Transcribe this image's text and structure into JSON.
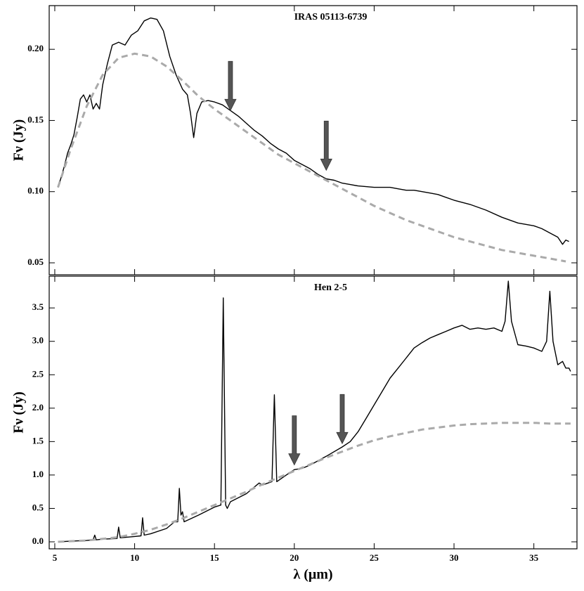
{
  "chart_data": [
    {
      "type": "line",
      "title": "IRAS 05113-6739",
      "ylabel": "Fν (Jy)",
      "xlim": [
        4.65,
        37.7
      ],
      "xticks": [
        5,
        10,
        15,
        20,
        25,
        30,
        35
      ],
      "ylim": [
        0.0416,
        0.2307
      ],
      "yticks": [
        {
          "value": 0.05,
          "label": "0.05"
        },
        {
          "value": 0.1,
          "label": "0.10"
        },
        {
          "value": 0.15,
          "label": "0.15"
        },
        {
          "value": 0.2,
          "label": "0.20"
        }
      ],
      "series": [
        {
          "color": "#000000",
          "dashed": false,
          "x": [
            5.2,
            5.4,
            5.6,
            5.8,
            6.0,
            6.2,
            6.4,
            6.6,
            6.8,
            7.0,
            7.2,
            7.4,
            7.6,
            7.8,
            8.0,
            8.3,
            8.6,
            9.0,
            9.4,
            9.8,
            10.2,
            10.6,
            11.0,
            11.4,
            11.8,
            12.2,
            12.6,
            13.0,
            13.3,
            13.5,
            13.7,
            13.9,
            14.2,
            14.6,
            15.0,
            15.5,
            16.0,
            16.5,
            17.0,
            17.5,
            18.0,
            18.5,
            19.0,
            19.5,
            20.0,
            20.5,
            21.0,
            21.5,
            22.0,
            22.5,
            23.0,
            23.5,
            24.0,
            25.0,
            26.0,
            26.5,
            27.0,
            27.5,
            28.0,
            28.5,
            29.0,
            30.0,
            31.0,
            32.0,
            33.0,
            34.0,
            35.0,
            35.5,
            36.0,
            36.5,
            36.8,
            37.0,
            37.2
          ],
          "values": [
            0.103,
            0.11,
            0.118,
            0.127,
            0.133,
            0.14,
            0.152,
            0.165,
            0.168,
            0.163,
            0.168,
            0.158,
            0.162,
            0.158,
            0.175,
            0.19,
            0.203,
            0.205,
            0.203,
            0.21,
            0.213,
            0.22,
            0.222,
            0.221,
            0.213,
            0.195,
            0.182,
            0.172,
            0.168,
            0.155,
            0.138,
            0.155,
            0.163,
            0.164,
            0.163,
            0.161,
            0.157,
            0.153,
            0.148,
            0.143,
            0.139,
            0.134,
            0.13,
            0.127,
            0.122,
            0.119,
            0.116,
            0.112,
            0.109,
            0.108,
            0.106,
            0.105,
            0.104,
            0.103,
            0.103,
            0.102,
            0.101,
            0.101,
            0.1,
            0.099,
            0.098,
            0.094,
            0.091,
            0.087,
            0.082,
            0.078,
            0.076,
            0.074,
            0.071,
            0.068,
            0.063,
            0.066,
            0.065
          ]
        },
        {
          "color": "#aaaaaa",
          "dashed": true,
          "x": [
            5.2,
            6,
            7,
            8,
            9,
            10,
            11,
            12,
            13,
            14,
            15,
            16,
            17,
            18,
            19,
            20,
            21,
            22,
            23,
            24,
            25,
            26,
            27,
            28,
            29,
            30,
            31,
            32,
            33,
            34,
            35,
            36,
            37
          ],
          "values": [
            0.103,
            0.13,
            0.16,
            0.182,
            0.194,
            0.197,
            0.195,
            0.188,
            0.178,
            0.167,
            0.158,
            0.15,
            0.142,
            0.134,
            0.126,
            0.12,
            0.114,
            0.108,
            0.102,
            0.096,
            0.09,
            0.085,
            0.08,
            0.076,
            0.072,
            0.068,
            0.065,
            0.062,
            0.059,
            0.057,
            0.055,
            0.053,
            0.051
          ]
        }
      ],
      "arrows": [
        {
          "x": 16,
          "y": 0.157
        },
        {
          "x": 22,
          "y": 0.115
        }
      ]
    },
    {
      "type": "line",
      "title": "Hen 2-5",
      "ylabel": "Fν (Jy)",
      "xlabel": "λ (μm)",
      "xlim": [
        4.65,
        37.7
      ],
      "xticks": [
        5,
        10,
        15,
        20,
        25,
        30,
        35
      ],
      "ylim": [
        -0.105,
        3.975
      ],
      "yticks": [
        {
          "value": 0,
          "label": "0.0"
        },
        0.5,
        {
          "value": 1,
          "label": "1.0"
        },
        1.5,
        {
          "value": 2,
          "label": "2.0"
        },
        2.5,
        {
          "value": 3,
          "label": "3.0"
        },
        3.5
      ],
      "series": [
        {
          "color": "#000000",
          "dashed": false,
          "x": [
            5.2,
            6,
            7,
            7.4,
            7.5,
            7.6,
            8,
            8.9,
            9.0,
            9.1,
            10,
            10.4,
            10.5,
            10.6,
            11,
            12,
            12.5,
            12.7,
            12.8,
            12.9,
            13.0,
            13.1,
            14,
            15,
            15.4,
            15.55,
            15.7,
            15.8,
            16,
            17,
            17.8,
            18.0,
            18.6,
            18.75,
            18.9,
            19.5,
            20,
            20.5,
            21,
            22,
            23,
            23.5,
            24,
            24.5,
            25,
            25.5,
            26,
            26.5,
            27,
            27.5,
            28,
            28.5,
            29,
            29.5,
            30,
            30.5,
            31,
            31.5,
            32,
            32.5,
            33,
            33.2,
            33.4,
            33.6,
            34,
            34.5,
            35,
            35.5,
            35.8,
            36.0,
            36.2,
            36.5,
            36.8,
            37.0,
            37.2,
            37.3
          ],
          "values": [
            0.0,
            0.01,
            0.02,
            0.03,
            0.1,
            0.03,
            0.04,
            0.05,
            0.22,
            0.06,
            0.08,
            0.09,
            0.36,
            0.1,
            0.12,
            0.2,
            0.3,
            0.3,
            0.8,
            0.4,
            0.45,
            0.3,
            0.4,
            0.52,
            0.55,
            3.65,
            0.55,
            0.5,
            0.6,
            0.72,
            0.88,
            0.85,
            0.9,
            2.2,
            0.9,
            1.0,
            1.08,
            1.1,
            1.15,
            1.28,
            1.42,
            1.5,
            1.65,
            1.85,
            2.05,
            2.25,
            2.45,
            2.6,
            2.75,
            2.9,
            2.98,
            3.05,
            3.1,
            3.15,
            3.2,
            3.24,
            3.18,
            3.2,
            3.18,
            3.2,
            3.15,
            3.3,
            3.9,
            3.3,
            2.95,
            2.93,
            2.9,
            2.85,
            3.0,
            3.75,
            3.0,
            2.65,
            2.7,
            2.6,
            2.6,
            2.55
          ]
        },
        {
          "color": "#aaaaaa",
          "dashed": true,
          "x": [
            5.2,
            7,
            9,
            10,
            11,
            12,
            13,
            14,
            15,
            16,
            17,
            18,
            19,
            20,
            21,
            22,
            23,
            24,
            25,
            26,
            27,
            28,
            29,
            30,
            31,
            32,
            33,
            34,
            35,
            36,
            37.3
          ],
          "values": [
            0.0,
            0.02,
            0.07,
            0.12,
            0.18,
            0.26,
            0.35,
            0.45,
            0.55,
            0.65,
            0.75,
            0.86,
            0.96,
            1.06,
            1.16,
            1.26,
            1.35,
            1.44,
            1.52,
            1.58,
            1.63,
            1.68,
            1.71,
            1.74,
            1.76,
            1.77,
            1.78,
            1.78,
            1.78,
            1.77,
            1.77
          ]
        }
      ],
      "arrows": [
        {
          "x": 20,
          "y": 1.15
        },
        {
          "x": 23,
          "y": 1.47
        }
      ]
    }
  ]
}
